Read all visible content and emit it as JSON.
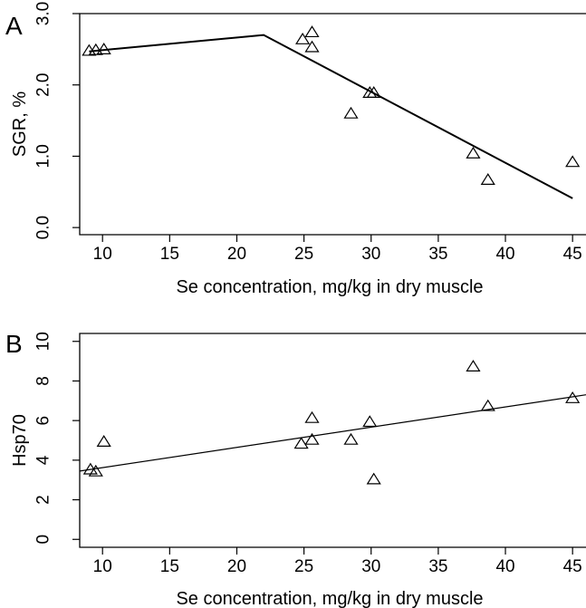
{
  "chart_data": [
    {
      "type": "scatter",
      "panel_label": "A",
      "xlabel": "Se concentration, mg/kg in dry muscle",
      "ylabel": "SGR, %",
      "xlim": [
        8.3,
        46.0
      ],
      "ylim": [
        -0.1,
        3.0
      ],
      "xticks": [
        "10",
        "15",
        "20",
        "25",
        "30",
        "35",
        "40",
        "45"
      ],
      "yticks": [
        "0.0",
        "1.0",
        "2.0",
        "3.0"
      ],
      "xtick_values": [
        10,
        15,
        20,
        25,
        30,
        35,
        40,
        45
      ],
      "ytick_values": [
        0.0,
        1.0,
        2.0,
        3.0
      ],
      "points": [
        {
          "x": 9.0,
          "y": 2.47
        },
        {
          "x": 9.5,
          "y": 2.48
        },
        {
          "x": 10.1,
          "y": 2.49
        },
        {
          "x": 24.9,
          "y": 2.63
        },
        {
          "x": 25.6,
          "y": 2.73
        },
        {
          "x": 25.6,
          "y": 2.52
        },
        {
          "x": 28.5,
          "y": 1.59
        },
        {
          "x": 29.9,
          "y": 1.88
        },
        {
          "x": 30.2,
          "y": 1.88
        },
        {
          "x": 37.6,
          "y": 1.03
        },
        {
          "x": 38.7,
          "y": 0.66
        },
        {
          "x": 45.0,
          "y": 0.91
        }
      ],
      "fit_line": [
        {
          "x": 9.0,
          "y": 2.47
        },
        {
          "x": 22.0,
          "y": 2.7
        },
        {
          "x": 45.0,
          "y": 0.41
        }
      ],
      "legend": "none",
      "grid": false
    },
    {
      "type": "scatter",
      "panel_label": "B",
      "xlabel": "Se concentration, mg/kg in dry muscle",
      "ylabel": "Hsp70",
      "xlim": [
        8.3,
        46.0
      ],
      "ylim": [
        -0.4,
        10.4
      ],
      "xticks": [
        "10",
        "15",
        "20",
        "25",
        "30",
        "35",
        "40",
        "45"
      ],
      "yticks": [
        "0",
        "2",
        "4",
        "6",
        "8",
        "10"
      ],
      "xtick_values": [
        10,
        15,
        20,
        25,
        30,
        35,
        40,
        45
      ],
      "ytick_values": [
        0,
        2,
        4,
        6,
        8,
        10
      ],
      "points": [
        {
          "x": 9.1,
          "y": 3.5
        },
        {
          "x": 9.5,
          "y": 3.4
        },
        {
          "x": 10.1,
          "y": 4.9
        },
        {
          "x": 24.8,
          "y": 4.8
        },
        {
          "x": 25.6,
          "y": 5.0
        },
        {
          "x": 25.6,
          "y": 6.1
        },
        {
          "x": 28.5,
          "y": 5.0
        },
        {
          "x": 29.9,
          "y": 5.9
        },
        {
          "x": 30.2,
          "y": 3.0
        },
        {
          "x": 37.6,
          "y": 8.7
        },
        {
          "x": 38.7,
          "y": 6.7
        },
        {
          "x": 45.0,
          "y": 7.1
        }
      ],
      "fit_line": [
        {
          "x": 8.3,
          "y": 3.45
        },
        {
          "x": 46.0,
          "y": 7.3
        }
      ],
      "legend": "none",
      "grid": false
    }
  ]
}
